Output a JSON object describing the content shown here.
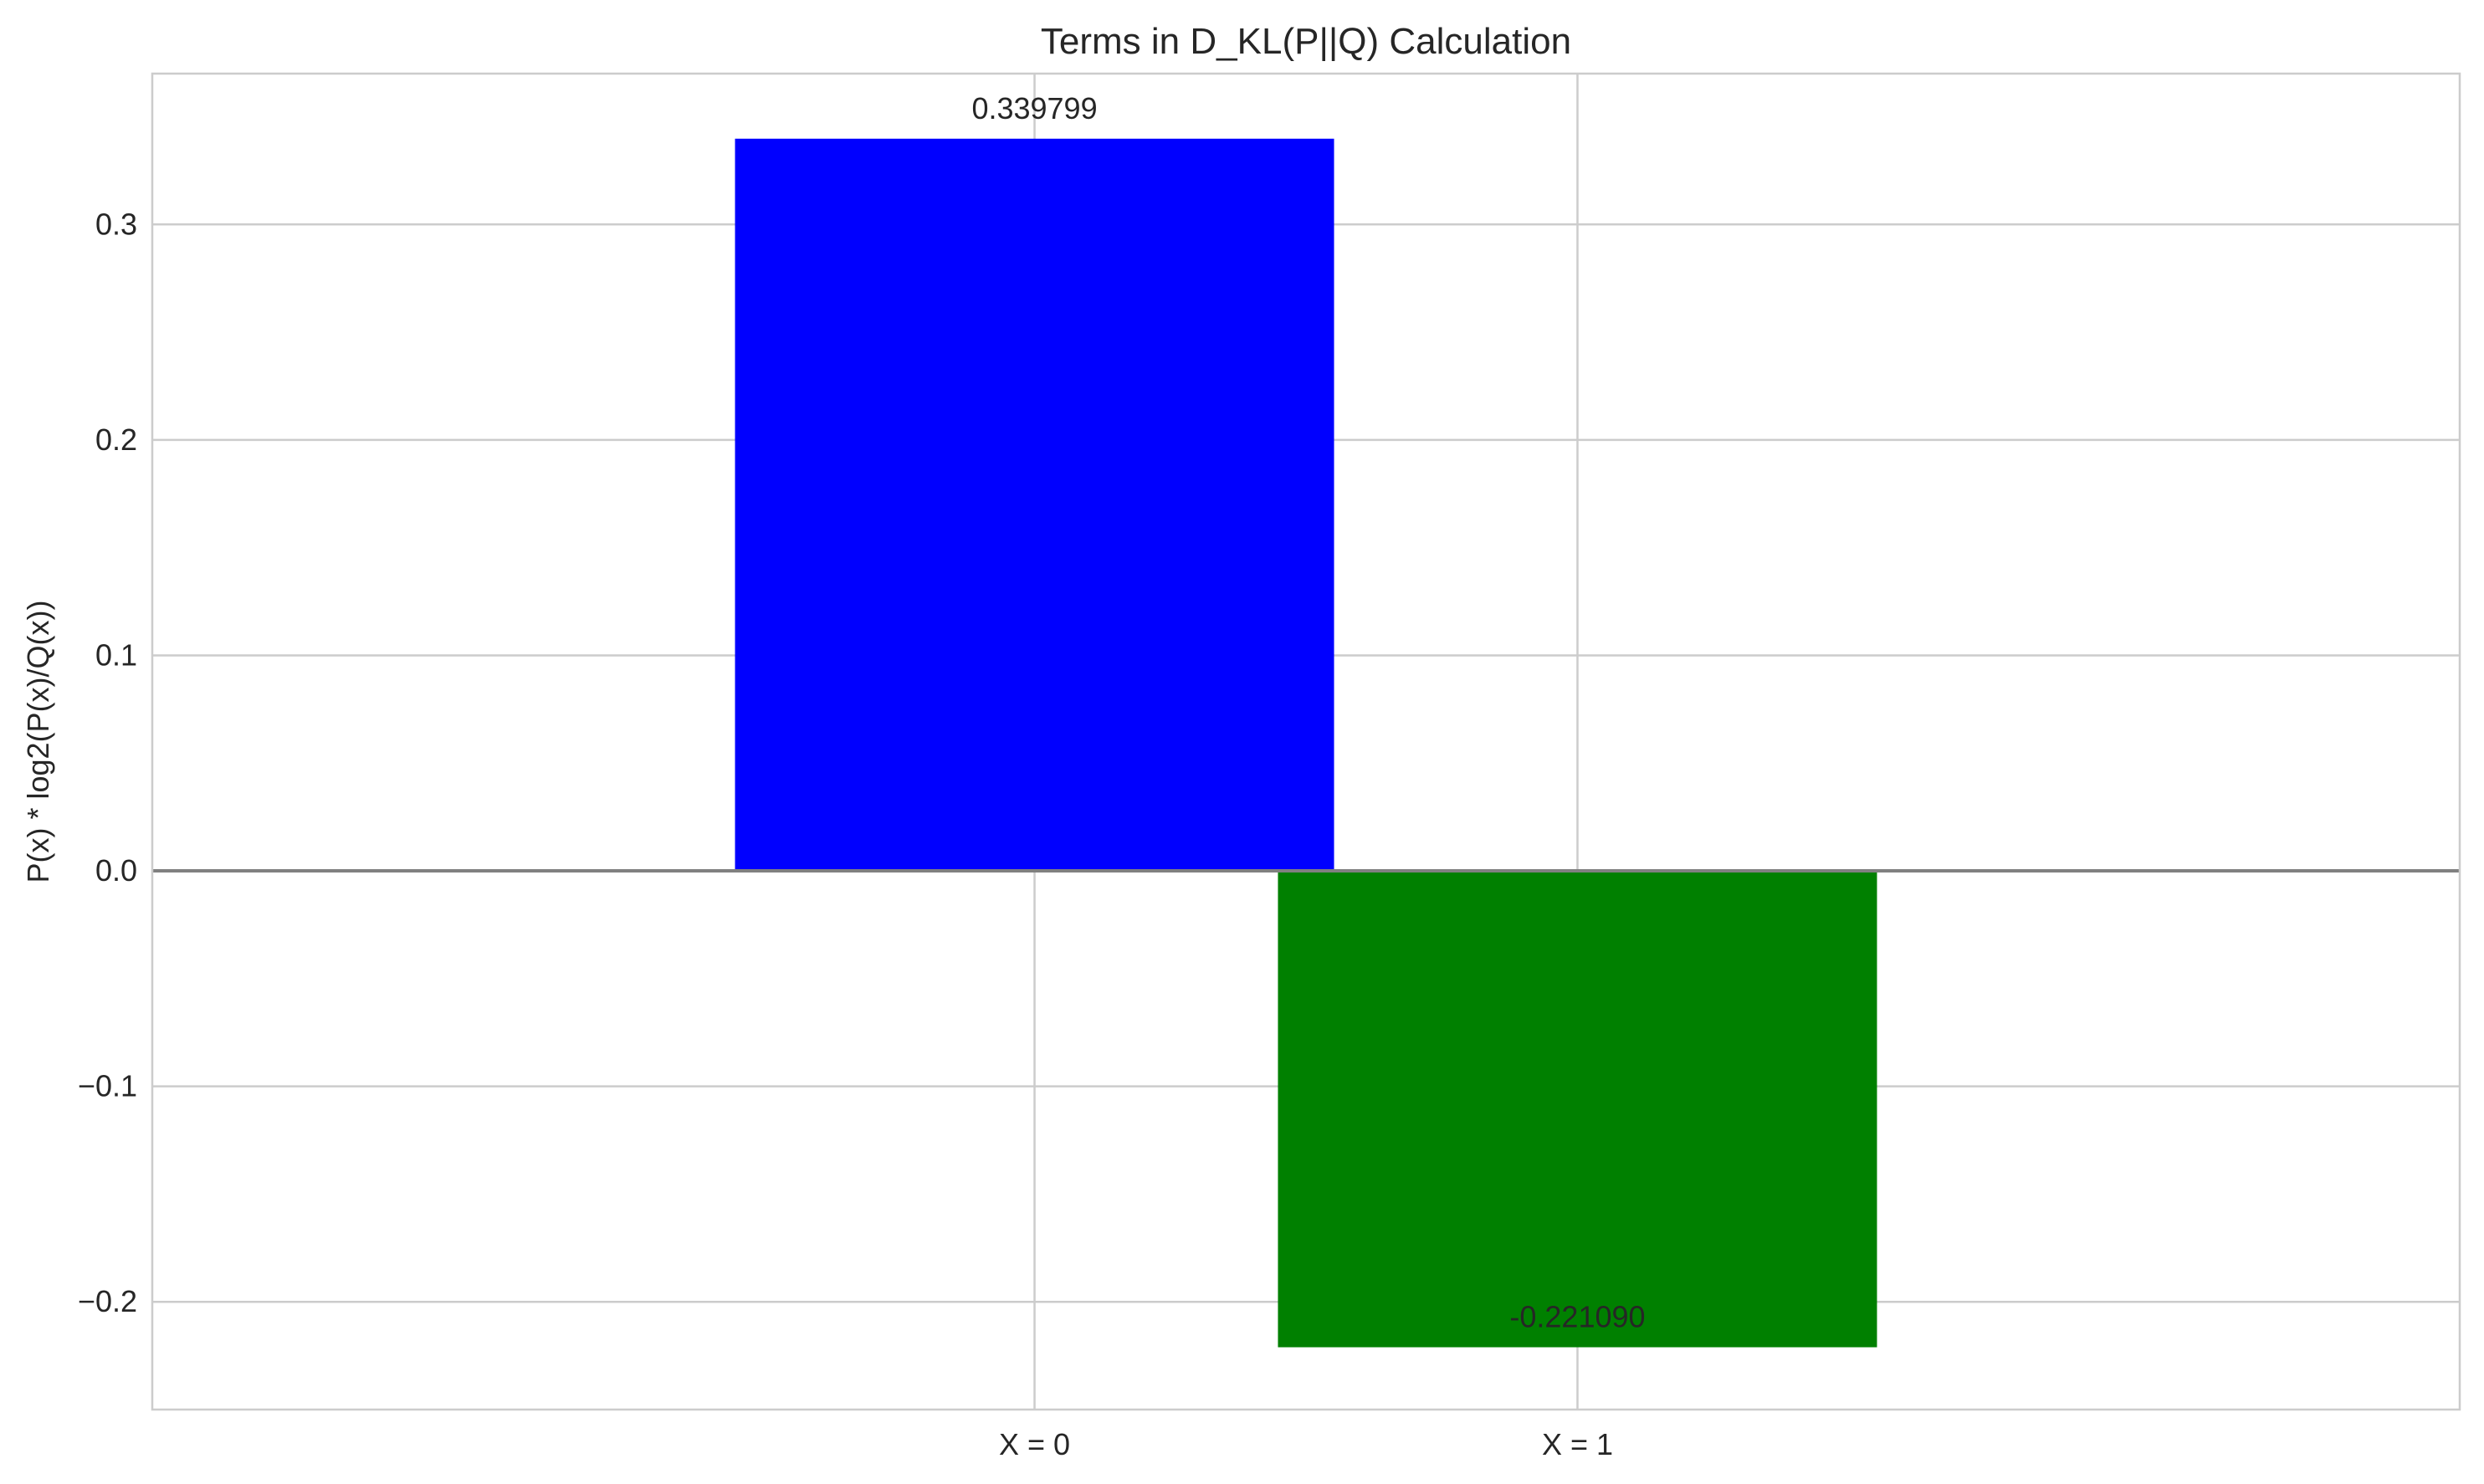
{
  "chart_data": {
    "type": "bar",
    "title": "Terms in D_KL(P||Q) Calculation",
    "xlabel": "",
    "ylabel": "P(x) * log2(P(x)/Q(x))",
    "categories": [
      "X = 0",
      "X = 1"
    ],
    "values": [
      0.339799,
      -0.22109
    ],
    "data_labels": [
      "0.339799",
      "-0.221090"
    ],
    "bar_colors": [
      "#0000ff",
      "#008000"
    ],
    "ylim": [
      -0.25,
      0.37
    ],
    "yticks": [
      -0.2,
      -0.1,
      0.0,
      0.1,
      0.2,
      0.3
    ],
    "ytick_labels": [
      "−0.2",
      "−0.1",
      "0.0",
      "0.1",
      "0.2",
      "0.3"
    ],
    "grid": true,
    "zero_line": true,
    "zero_line_color": "#808080",
    "grid_color": "#cccccc",
    "spine_color": "#cccccc",
    "legend": "none"
  }
}
